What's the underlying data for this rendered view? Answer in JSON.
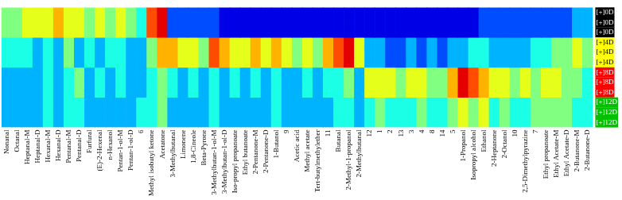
{
  "chart_data": {
    "type": "heatmap",
    "grid": false,
    "categories": [
      "Nonanal",
      "Octanal",
      "Heptanal-M",
      "Heptanal-D",
      "Hexanal-M",
      "Hexanal-D",
      "Pentanal-M",
      "Pentanal-D",
      "Furfural",
      "(E)-2-Hexenal",
      "n-Hexanol",
      "Pentan-1-ol-M",
      "Pentan-1-ol-D",
      "6",
      "Methyl isobutyl ketone",
      "Acetatone",
      "3-Methylbutanal",
      "Limonene",
      "1,8-Cineole",
      "Beta-Pyrone",
      "3-Methylbutan-1-ol-M",
      "3-Methylbutan-1-ol-D",
      "Iso-propyl propanoate",
      "Ethyl butanoate",
      "2-Pentanone-M",
      "2-Pentanone-D",
      "1-Butanol",
      "9",
      "Acetic acid",
      "Methyl acetate",
      "Tert-butylmethylether",
      "11",
      "Butanal",
      "2-Methyl-1-propanol",
      "2-Methylbutanal",
      "12",
      "1",
      "2",
      "13",
      "3",
      "4",
      "8",
      "14",
      "5",
      "1-Propanol",
      "Isopropyl alcohol",
      "Ethanol",
      "2-Heptanone",
      "2-Octanol",
      "10",
      "2,5-Dimethylpyrazine",
      "7",
      "Ethyl propanoate",
      "Ethyl Acetate-M",
      "Ethyl Acetate-D",
      "2-Butanone-M",
      "2-Butanone-D"
    ],
    "series": [
      {
        "name": "[+]0D",
        "color": "#000000",
        "values": [
          0.5,
          0.5,
          0.6,
          0.6,
          0.6,
          0.7,
          0.6,
          0.6,
          0.5,
          0.6,
          0.5,
          0.6,
          0.5,
          0.4,
          0.8,
          0.9,
          0.2,
          0.2,
          0.2,
          0.2,
          0.2,
          0.1,
          0.1,
          0.1,
          0.1,
          0.1,
          0.1,
          0.1,
          0.1,
          0.1,
          0.1,
          0.1,
          0.1,
          0.1,
          0.1,
          0.1,
          0.1,
          0.1,
          0.1,
          0.1,
          0.1,
          0.1,
          0.1,
          0.1,
          0.1,
          0.1,
          0.2,
          0.2,
          0.2,
          0.2,
          0.2,
          0.2,
          0.2,
          0.2,
          0.2,
          0.3,
          0.3
        ]
      },
      {
        "name": "[+]0D",
        "color": "#000000",
        "values": [
          0.5,
          0.5,
          0.6,
          0.6,
          0.6,
          0.7,
          0.6,
          0.6,
          0.5,
          0.6,
          0.5,
          0.6,
          0.5,
          0.4,
          0.8,
          0.9,
          0.2,
          0.2,
          0.2,
          0.2,
          0.2,
          0.1,
          0.1,
          0.1,
          0.1,
          0.1,
          0.1,
          0.1,
          0.1,
          0.1,
          0.1,
          0.1,
          0.1,
          0.1,
          0.1,
          0.1,
          0.1,
          0.1,
          0.1,
          0.1,
          0.1,
          0.1,
          0.1,
          0.1,
          0.1,
          0.1,
          0.2,
          0.2,
          0.2,
          0.2,
          0.2,
          0.2,
          0.2,
          0.2,
          0.2,
          0.3,
          0.3
        ]
      },
      {
        "name": "[+]0D",
        "color": "#000000",
        "values": [
          0.5,
          0.5,
          0.6,
          0.6,
          0.6,
          0.7,
          0.6,
          0.6,
          0.5,
          0.6,
          0.5,
          0.6,
          0.5,
          0.4,
          0.8,
          0.9,
          0.2,
          0.2,
          0.2,
          0.2,
          0.2,
          0.1,
          0.1,
          0.1,
          0.1,
          0.1,
          0.1,
          0.1,
          0.1,
          0.1,
          0.1,
          0.1,
          0.1,
          0.1,
          0.1,
          0.1,
          0.1,
          0.1,
          0.1,
          0.1,
          0.1,
          0.1,
          0.1,
          0.1,
          0.1,
          0.1,
          0.2,
          0.2,
          0.2,
          0.2,
          0.2,
          0.2,
          0.2,
          0.2,
          0.2,
          0.3,
          0.3
        ]
      },
      {
        "name": "[+]4D",
        "color": "#ffff00",
        "values": [
          0.4,
          0.4,
          0.4,
          0.3,
          0.4,
          0.3,
          0.5,
          0.3,
          0.4,
          0.3,
          0.4,
          0.4,
          0.3,
          0.3,
          0.5,
          0.7,
          0.7,
          0.6,
          0.6,
          0.5,
          0.8,
          0.7,
          0.6,
          0.6,
          0.7,
          0.6,
          0.7,
          0.6,
          0.5,
          0.6,
          0.5,
          0.7,
          0.8,
          0.9,
          0.6,
          0.3,
          0.3,
          0.2,
          0.2,
          0.3,
          0.2,
          0.3,
          0.2,
          0.3,
          0.3,
          0.4,
          0.4,
          0.3,
          0.3,
          0.3,
          0.3,
          0.4,
          0.4,
          0.5,
          0.5,
          0.6,
          0.5
        ]
      },
      {
        "name": "[+]4D",
        "color": "#ffff00",
        "values": [
          0.4,
          0.4,
          0.4,
          0.3,
          0.4,
          0.3,
          0.5,
          0.3,
          0.4,
          0.3,
          0.4,
          0.4,
          0.3,
          0.3,
          0.5,
          0.7,
          0.7,
          0.6,
          0.6,
          0.5,
          0.8,
          0.7,
          0.6,
          0.6,
          0.7,
          0.6,
          0.7,
          0.6,
          0.5,
          0.6,
          0.5,
          0.7,
          0.8,
          0.9,
          0.6,
          0.3,
          0.3,
          0.2,
          0.2,
          0.3,
          0.2,
          0.3,
          0.2,
          0.3,
          0.3,
          0.4,
          0.4,
          0.3,
          0.3,
          0.3,
          0.3,
          0.4,
          0.4,
          0.5,
          0.5,
          0.6,
          0.5
        ]
      },
      {
        "name": "[+]4D",
        "color": "#ffff00",
        "values": [
          0.4,
          0.4,
          0.4,
          0.3,
          0.4,
          0.3,
          0.5,
          0.3,
          0.4,
          0.3,
          0.4,
          0.4,
          0.3,
          0.3,
          0.5,
          0.7,
          0.7,
          0.6,
          0.6,
          0.5,
          0.8,
          0.7,
          0.6,
          0.6,
          0.7,
          0.6,
          0.7,
          0.6,
          0.5,
          0.6,
          0.5,
          0.7,
          0.8,
          0.9,
          0.6,
          0.3,
          0.3,
          0.2,
          0.2,
          0.3,
          0.2,
          0.3,
          0.2,
          0.3,
          0.3,
          0.4,
          0.4,
          0.3,
          0.3,
          0.3,
          0.3,
          0.4,
          0.4,
          0.5,
          0.5,
          0.6,
          0.5
        ]
      },
      {
        "name": "[+]8D",
        "color": "#ff0000",
        "values": [
          0.3,
          0.3,
          0.3,
          0.3,
          0.4,
          0.3,
          0.4,
          0.5,
          0.3,
          0.4,
          0.3,
          0.4,
          0.3,
          0.3,
          0.4,
          0.5,
          0.4,
          0.3,
          0.4,
          0.3,
          0.4,
          0.3,
          0.4,
          0.3,
          0.4,
          0.3,
          0.4,
          0.3,
          0.3,
          0.4,
          0.3,
          0.4,
          0.4,
          0.5,
          0.3,
          0.6,
          0.6,
          0.6,
          0.5,
          0.6,
          0.6,
          0.5,
          0.5,
          0.7,
          0.9,
          0.8,
          0.7,
          0.6,
          0.6,
          0.5,
          0.6,
          0.5,
          0.6,
          0.6,
          0.5,
          0.5,
          0.4
        ]
      },
      {
        "name": "[+]8D",
        "color": "#ff0000",
        "values": [
          0.3,
          0.3,
          0.3,
          0.3,
          0.4,
          0.3,
          0.4,
          0.5,
          0.3,
          0.4,
          0.3,
          0.4,
          0.3,
          0.3,
          0.4,
          0.5,
          0.4,
          0.3,
          0.4,
          0.3,
          0.4,
          0.3,
          0.4,
          0.3,
          0.4,
          0.3,
          0.4,
          0.3,
          0.3,
          0.4,
          0.3,
          0.4,
          0.4,
          0.5,
          0.3,
          0.6,
          0.6,
          0.6,
          0.5,
          0.6,
          0.6,
          0.5,
          0.5,
          0.7,
          0.9,
          0.8,
          0.7,
          0.6,
          0.6,
          0.5,
          0.6,
          0.5,
          0.6,
          0.6,
          0.5,
          0.5,
          0.4
        ]
      },
      {
        "name": "[+]8D",
        "color": "#ff0000",
        "values": [
          0.3,
          0.3,
          0.3,
          0.3,
          0.4,
          0.3,
          0.4,
          0.5,
          0.3,
          0.4,
          0.3,
          0.4,
          0.3,
          0.3,
          0.4,
          0.5,
          0.4,
          0.3,
          0.4,
          0.3,
          0.4,
          0.3,
          0.4,
          0.3,
          0.4,
          0.3,
          0.4,
          0.3,
          0.3,
          0.4,
          0.3,
          0.4,
          0.4,
          0.5,
          0.3,
          0.6,
          0.6,
          0.6,
          0.5,
          0.6,
          0.6,
          0.5,
          0.5,
          0.7,
          0.9,
          0.8,
          0.7,
          0.6,
          0.6,
          0.5,
          0.6,
          0.5,
          0.6,
          0.6,
          0.5,
          0.5,
          0.4
        ]
      },
      {
        "name": "[+]12D",
        "color": "#00c000",
        "values": [
          0.3,
          0.3,
          0.3,
          0.3,
          0.4,
          0.3,
          0.4,
          0.4,
          0.3,
          0.3,
          0.3,
          0.3,
          0.3,
          0.4,
          0.4,
          0.5,
          0.3,
          0.3,
          0.3,
          0.3,
          0.4,
          0.3,
          0.3,
          0.3,
          0.3,
          0.3,
          0.4,
          0.3,
          0.3,
          0.3,
          0.3,
          0.3,
          0.4,
          0.4,
          0.3,
          0.4,
          0.5,
          0.4,
          0.4,
          0.4,
          0.5,
          0.4,
          0.4,
          0.5,
          0.6,
          0.5,
          0.6,
          0.4,
          0.5,
          0.4,
          0.4,
          0.5,
          0.5,
          0.5,
          0.5,
          0.4,
          0.4
        ]
      },
      {
        "name": "[+]12D",
        "color": "#00c000",
        "values": [
          0.3,
          0.3,
          0.3,
          0.3,
          0.4,
          0.3,
          0.4,
          0.4,
          0.3,
          0.3,
          0.3,
          0.3,
          0.3,
          0.4,
          0.4,
          0.5,
          0.3,
          0.3,
          0.3,
          0.3,
          0.4,
          0.3,
          0.3,
          0.3,
          0.3,
          0.3,
          0.4,
          0.3,
          0.3,
          0.3,
          0.3,
          0.3,
          0.4,
          0.4,
          0.3,
          0.4,
          0.5,
          0.4,
          0.4,
          0.4,
          0.5,
          0.4,
          0.4,
          0.5,
          0.6,
          0.5,
          0.6,
          0.4,
          0.5,
          0.4,
          0.4,
          0.5,
          0.5,
          0.5,
          0.5,
          0.4,
          0.4
        ]
      },
      {
        "name": "[+]12D",
        "color": "#00c000",
        "values": [
          0.3,
          0.3,
          0.3,
          0.3,
          0.4,
          0.3,
          0.4,
          0.4,
          0.3,
          0.3,
          0.3,
          0.3,
          0.3,
          0.4,
          0.4,
          0.5,
          0.3,
          0.3,
          0.3,
          0.3,
          0.4,
          0.3,
          0.3,
          0.3,
          0.3,
          0.3,
          0.4,
          0.3,
          0.3,
          0.3,
          0.3,
          0.3,
          0.4,
          0.4,
          0.3,
          0.4,
          0.5,
          0.4,
          0.4,
          0.4,
          0.5,
          0.4,
          0.4,
          0.5,
          0.6,
          0.5,
          0.6,
          0.4,
          0.5,
          0.4,
          0.4,
          0.5,
          0.5,
          0.5,
          0.5,
          0.4,
          0.4
        ]
      }
    ]
  }
}
